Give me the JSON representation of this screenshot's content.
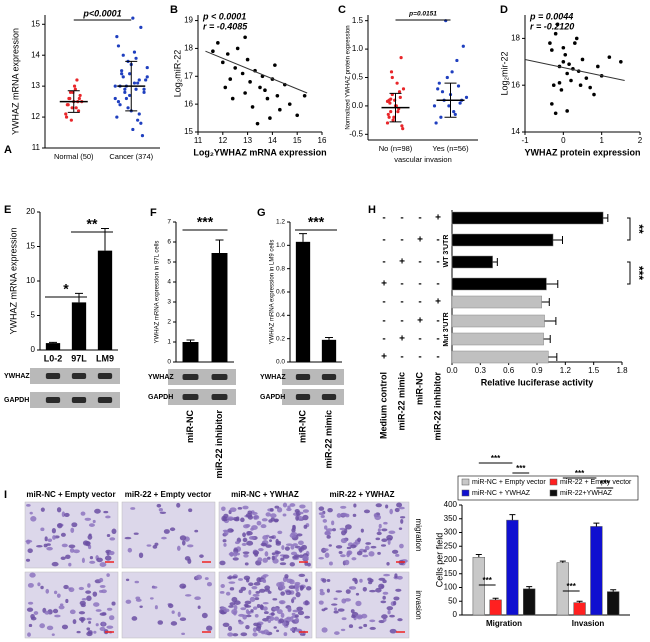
{
  "chart_data": [
    {
      "type": "dot",
      "panel": "A",
      "ylabel": "YWHAZ mRNA expression",
      "categories": [
        "Normal (50)",
        "Cancer (374)"
      ],
      "colors": [
        "#e8262a",
        "#1f3fbf"
      ],
      "values": [
        [
          12.1,
          12.4,
          12.6,
          12.8,
          12.3,
          12.5,
          12.9,
          13.2,
          12.2,
          12.7,
          12.5,
          12.0,
          12.4,
          12.6,
          11.9,
          12.8,
          13.0,
          12.3,
          12.5,
          12.6
        ],
        [
          13.0,
          12.5,
          13.4,
          12.8,
          13.8,
          12.2,
          14.1,
          13.1,
          11.8,
          12.9,
          13.6,
          14.6,
          12.4,
          13.3,
          13.0,
          12.7,
          15.2,
          13.9,
          12.1,
          11.4,
          13.2,
          12.6,
          14.3,
          13.5,
          12.9,
          12.3,
          13.7,
          13.1,
          11.9,
          14.9,
          12.8,
          13.3,
          12.0,
          13.0,
          14.0,
          12.6,
          13.4,
          11.6,
          12.9,
          13.2
        ]
      ],
      "means": [
        12.5,
        13.0
      ],
      "sds": [
        0.35,
        0.8
      ],
      "ylim": [
        11,
        15.3
      ],
      "yticks": [
        11,
        12,
        13,
        14,
        15
      ],
      "annotations": [
        "p<0.0001"
      ]
    },
    {
      "type": "scatter",
      "panel": "B",
      "xlabel": "Log₂YWHAZ mRNA expression",
      "ylabel": "Log₂miR-22",
      "color": "#000000",
      "x": [
        11.8,
        12.0,
        12.2,
        12.3,
        12.5,
        12.6,
        12.8,
        12.9,
        13.0,
        13.1,
        13.2,
        13.3,
        13.5,
        13.6,
        13.8,
        13.9,
        14.0,
        14.2,
        14.3,
        14.5,
        14.7,
        15.0,
        15.3,
        11.6,
        12.4,
        12.9,
        13.4,
        13.7,
        14.1,
        12.1
      ],
      "values": [
        18.2,
        17.5,
        17.8,
        16.9,
        17.3,
        18.0,
        17.1,
        16.4,
        17.6,
        16.8,
        15.9,
        17.2,
        16.6,
        17.0,
        16.2,
        15.5,
        16.9,
        16.3,
        15.8,
        16.7,
        16.0,
        15.6,
        16.3,
        17.9,
        16.2,
        18.4,
        15.3,
        16.5,
        17.4,
        16.6
      ],
      "fit": {
        "x": [
          11.3,
          15.4
        ],
        "y": [
          17.9,
          16.4
        ]
      },
      "xlim": [
        11,
        16
      ],
      "xticks": [
        11,
        12,
        13,
        14,
        15,
        16
      ],
      "ylim": [
        15,
        19.2
      ],
      "yticks": [
        15,
        16,
        17,
        18,
        19
      ],
      "annotations": [
        "p < 0.0001",
        "r = -0.4085"
      ]
    },
    {
      "type": "dot",
      "panel": "C",
      "ylabel": "Normalized YWHAZ protein expression",
      "xlabel": "vascular invasion",
      "categories": [
        "No (n=98)",
        "Yes (n=56)"
      ],
      "colors": [
        "#e8262a",
        "#1f3fbf"
      ],
      "values": [
        [
          -0.3,
          0.1,
          -0.1,
          0.2,
          -0.2,
          0.0,
          0.4,
          -0.05,
          0.15,
          -0.35,
          0.3,
          -0.15,
          0.05,
          0.6,
          -0.25,
          0.1,
          0.0,
          -0.1,
          0.25,
          0.85,
          -0.4,
          0.08,
          -0.2,
          0.12,
          0.5
        ],
        [
          0.0,
          0.3,
          -0.2,
          0.1,
          0.5,
          0.2,
          -0.1,
          0.8,
          0.05,
          1.05,
          0.15,
          -0.3,
          0.4,
          0.25,
          1.5,
          0.0,
          0.6,
          -0.15,
          0.35,
          0.1
        ]
      ],
      "means": [
        -0.03,
        0.1
      ],
      "sds": [
        0.25,
        0.3
      ],
      "ylim": [
        -0.6,
        1.6
      ],
      "yticks": [
        -0.5,
        {
          "value": 0,
          "label": "0.0"
        },
        0.5,
        {
          "value": 1,
          "label": "1.0"
        },
        1.5
      ],
      "annotations": [
        "p=0.0151"
      ]
    },
    {
      "type": "scatter",
      "panel": "D",
      "xlabel": "YWHAZ protein expression",
      "ylabel": "Log₂mir-22",
      "color": "#000000",
      "x": [
        -0.3,
        -0.2,
        -0.1,
        0.0,
        0.1,
        -0.25,
        -0.15,
        0.05,
        0.2,
        0.3,
        0.4,
        -0.3,
        -0.05,
        0.15,
        0.5,
        0.6,
        0.8,
        1.0,
        1.2,
        -0.2,
        0.0,
        0.25,
        0.35,
        -0.1,
        0.7,
        0.9,
        -0.35,
        0.1,
        1.5,
        0.45
      ],
      "values": [
        17.5,
        18.2,
        16.8,
        17.0,
        16.5,
        16.0,
        18.6,
        17.3,
        16.2,
        17.8,
        16.6,
        15.2,
        15.8,
        16.9,
        17.1,
        16.3,
        15.6,
        16.4,
        17.2,
        14.8,
        17.6,
        16.7,
        18.0,
        16.1,
        15.9,
        16.8,
        17.8,
        14.9,
        17.0,
        16.0
      ],
      "fit": {
        "x": [
          -1,
          1.6
        ],
        "y": [
          17.1,
          16.2
        ]
      },
      "xlim": [
        -1,
        2
      ],
      "xticks": [
        -1,
        0,
        1,
        2
      ],
      "ylim": [
        14,
        19
      ],
      "yticks": [
        14,
        16,
        18
      ],
      "annotations": [
        "p = 0.0044",
        "r = -0.2120"
      ]
    },
    {
      "type": "bar",
      "panel": "E",
      "ylabel": "YWHAZ mRNA expression",
      "categories": [
        "L0-2",
        "97L",
        "LM9"
      ],
      "color": "#000000",
      "values": [
        1.0,
        6.9,
        14.4
      ],
      "errors": [
        0.1,
        1.3,
        3.2
      ],
      "ylim": [
        0,
        20
      ],
      "yticks": [
        0,
        5,
        10,
        15,
        20
      ],
      "significance": [
        "*",
        "**"
      ],
      "blot_labels": [
        "YWHAZ",
        "GAPDH"
      ]
    },
    {
      "type": "bar",
      "panel": "F",
      "ylabel": "YWHAZ mRNA expression in 97L cells",
      "categories": [
        "miR-NC",
        "miR-22 inhibitor"
      ],
      "color": "#000000",
      "values": [
        1.0,
        5.45
      ],
      "errors": [
        0.1,
        0.65
      ],
      "ylim": [
        0,
        7
      ],
      "yticks": [
        0,
        1,
        2,
        3,
        4,
        5,
        6,
        7
      ],
      "significance": [
        "***"
      ],
      "blot_labels": [
        "YWHAZ",
        "GAPDH"
      ]
    },
    {
      "type": "bar",
      "panel": "G",
      "ylabel": "YWHAZ mRNA expression in LM9 cells",
      "categories": [
        "miR-NC",
        "miR-22 mimic"
      ],
      "color": "#000000",
      "values": [
        1.03,
        0.19
      ],
      "errors": [
        0.07,
        0.02
      ],
      "ylim": [
        0,
        1.2
      ],
      "yticks": [
        {
          "value": 0,
          "label": "0.0"
        },
        0.2,
        0.4,
        0.6,
        0.8,
        {
          "value": 1,
          "label": "1.0"
        },
        1.2
      ],
      "significance": [
        "***"
      ],
      "blot_labels": [
        "YWHAZ",
        "GAPDH"
      ]
    },
    {
      "type": "hbar",
      "panel": "H",
      "xlabel": "Relative luciferase activity",
      "row_labels": [
        "Medium control",
        "miR-22 mimic",
        "miR-NC",
        "miR-22 inhibitor"
      ],
      "conditions": [
        [
          "-",
          "-",
          "-",
          "+"
        ],
        [
          "-",
          "-",
          "+",
          "-"
        ],
        [
          "-",
          "+",
          "-",
          "-"
        ],
        [
          "+",
          "-",
          "-",
          "-"
        ]
      ],
      "series": [
        {
          "name": "WT 3'UTR",
          "color": "#000000",
          "values": [
            1.6,
            1.07,
            0.43,
            1.0
          ],
          "errors": [
            0.05,
            0.1,
            0.05,
            0.12
          ]
        },
        {
          "name": "Mut 3'UTR",
          "color": "#c0c0c0",
          "values": [
            0.95,
            0.98,
            0.97,
            1.02
          ],
          "errors": [
            0.08,
            0.12,
            0.07,
            0.09
          ]
        }
      ],
      "xlim": [
        0,
        1.8
      ],
      "xticks": [
        {
          "value": 0,
          "label": "0.0"
        },
        0.3,
        0.6,
        0.9,
        1.2,
        1.5,
        1.8
      ],
      "significance": [
        "**",
        "***"
      ]
    },
    {
      "type": "grouped-bar",
      "panel": "I",
      "ylabel": "Cells per field",
      "categories": [
        "Migration",
        "Invasion"
      ],
      "series": [
        {
          "name": "miR-NC + Empty vector",
          "color": "#c8c8c8",
          "values": [
            210,
            190
          ],
          "errors": [
            10,
            6
          ]
        },
        {
          "name": "miR-22 + Empty vector",
          "color": "#ff2020",
          "values": [
            55,
            45
          ],
          "errors": [
            6,
            5
          ]
        },
        {
          "name": "miR-NC + YWHAZ",
          "color": "#1010d0",
          "values": [
            345,
            322
          ],
          "errors": [
            20,
            12
          ]
        },
        {
          "name": "miR-22+YWHAZ",
          "color": "#101010",
          "values": [
            95,
            85
          ],
          "errors": [
            8,
            7
          ]
        }
      ],
      "ylim": [
        0,
        400
      ],
      "yticks": [
        0,
        50,
        100,
        150,
        200,
        250,
        300,
        350,
        400
      ],
      "significance": [
        "***",
        "***",
        "***",
        "***",
        "***",
        "***"
      ]
    }
  ],
  "micrographs": {
    "columns": [
      "miR-NC + Empty vector",
      "miR-22 + Empty vector",
      "miR-NC + YWHAZ",
      "miR-22 + YWHAZ"
    ],
    "rows": [
      "migration",
      "invasion"
    ]
  }
}
